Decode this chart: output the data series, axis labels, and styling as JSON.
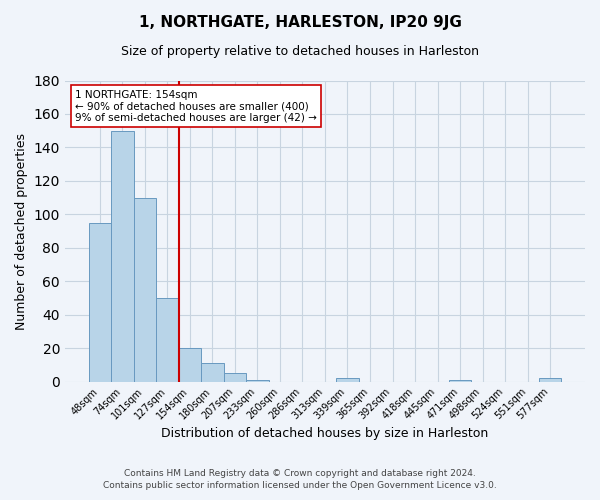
{
  "title": "1, NORTHGATE, HARLESTON, IP20 9JG",
  "subtitle": "Size of property relative to detached houses in Harleston",
  "xlabel": "Distribution of detached houses by size in Harleston",
  "ylabel": "Number of detached properties",
  "bin_labels": [
    "48sqm",
    "74sqm",
    "101sqm",
    "127sqm",
    "154sqm",
    "180sqm",
    "207sqm",
    "233sqm",
    "260sqm",
    "286sqm",
    "313sqm",
    "339sqm",
    "365sqm",
    "392sqm",
    "418sqm",
    "445sqm",
    "471sqm",
    "498sqm",
    "524sqm",
    "551sqm",
    "577sqm"
  ],
  "bar_heights": [
    95,
    150,
    110,
    50,
    20,
    11,
    5,
    1,
    0,
    0,
    0,
    2,
    0,
    0,
    0,
    0,
    1,
    0,
    0,
    0,
    2
  ],
  "bar_color": "#b8d4e8",
  "bar_edge_color": "#6899c0",
  "vline_x_idx": 4,
  "vline_color": "#cc0000",
  "annotation_text": "1 NORTHGATE: 154sqm\n← 90% of detached houses are smaller (400)\n9% of semi-detached houses are larger (42) →",
  "annotation_box_color": "#ffffff",
  "annotation_box_edge_color": "#cc0000",
  "ylim": [
    0,
    180
  ],
  "yticks": [
    0,
    20,
    40,
    60,
    80,
    100,
    120,
    140,
    160,
    180
  ],
  "footer_line1": "Contains HM Land Registry data © Crown copyright and database right 2024.",
  "footer_line2": "Contains public sector information licensed under the Open Government Licence v3.0.",
  "bg_color": "#f0f4fa",
  "grid_color": "#c8d4e0"
}
